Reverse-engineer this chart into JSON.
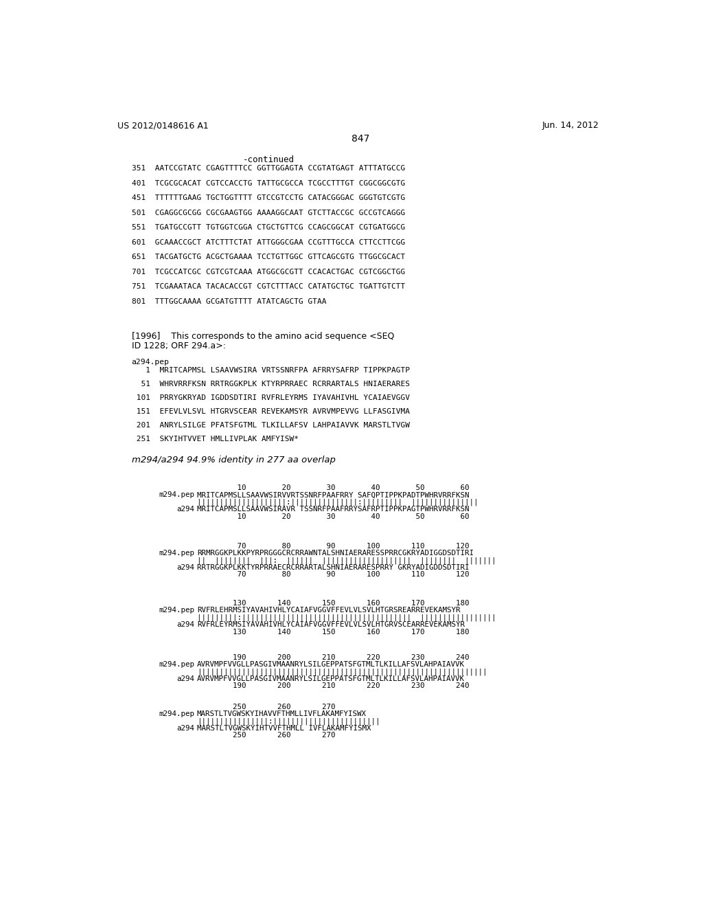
{
  "header_left": "US 2012/0148616 A1",
  "header_right": "Jun. 14, 2012",
  "page_number": "847",
  "background_color": "#ffffff",
  "text_color": "#000000",
  "continued_label": "-continued",
  "dna_sequences": [
    "351  AATCCGTATC CGAGTTTTCC GGTTGGAGTA CCGTATGAGT ATTTATGCCG",
    "401  TCGCGCACAT CGTCCACCTG TATTGCGCCA TCGCCTTTGT CGGCGGCGTG",
    "451  TTTTTTGAAG TGCTGGTTTT GTCCGTCCTG CATACGGGAC GGGTGTCGTG",
    "501  CGAGGCGCGG CGCGAAGTGG AAAAGGCAAT GTCTTACCGC GCCGTCAGGG",
    "551  TGATGCCGTT TGTGGTCGGA CTGCTGTTCG CCAGCGGCAT CGTGATGGCG",
    "601  GCAAACCGCT ATCTTTCTAT ATTGGGCGAA CCGTTTGCCA CTTCCTTCGG",
    "651  TACGATGCTG ACGCTGAAAA TCCTGTTGGC GTTCAGCGTG TTGGCGCACT",
    "701  TCGCCATCGC CGTCGTCAAA ATGGCGCGTT CCACACTGAC CGTCGGCTGG",
    "751  TCGAAATACA TACACACCGT CGTCTTTACC CATATGCTGC TGATTGTCTT",
    "801  TTTGGCAAAA GCGATGTTTT ATATCAGCTG GTAA"
  ],
  "para1996_line1": "[1996]    This corresponds to the amino acid sequence <SEQ",
  "para1996_line2": "ID 1228; ORF 294.a>:",
  "protein_label": "a294.pep",
  "protein_sequences": [
    "   1  MRITCAPMSL LSAAVWSIRA VRTSSNRFPA AFRRYSAFRP TIPPKPAGTP",
    "  51  WHRVRRFKSN RRTRGGKPLK KTYRPRRAEC RCRRARTALS HNIAERARES",
    " 101  PRRYGKRYAD IGDDSDTIRI RVFRLEYRMS IYAVAHIVHL YCAIAEVGGV",
    " 151  EFEVLVLSVL HTGRVSCEAR REVEKAMSYR AVRVMPEVVG LLFASGIVMA",
    " 201  ANRYLSILGE PFATSFGTML TLKILLAFSV LAHPAIAVVK MARSTLTVGW",
    " 251  SKYIHTVVET HMLLIVPLAK AMFYISW*"
  ],
  "identity_line": "m294/a294 94.9% identity in 277 aa overlap",
  "align_num_top_1": "         10        20        30        40        50        60",
  "align_seq1_1": "MRITCAPMSLLSAAVWSIRVVRTSSNRFPAAFRRY SAFQPTIPPKPADTPWHRVRRFKSN",
  "align_match_1": "||||||||||||||||||||:|||||||||||||||:|||||||||  |||||||||||||||",
  "align_seq2_1": "MRITCAPMSLLSAAVWSIRAVR TSSNRFPAAFRRYSAFRPTIPPKPAGTPWHRVRRFKSN",
  "align_num_bot_1": "         10        20        30        40        50        60",
  "align_num_top_2": "         70        80        90       100       110       120",
  "align_seq1_2": "RRMRGGKPLKKPYRPRGGGCRCRRAWNTALSHNIAERARESSPRRCGKRYADIGGDSDTIRI",
  "align_match_2": "||  ||||||||  |||:  ||||||  ||||||||||||||||||||  ||||||||  |||||||",
  "align_seq2_2": "RRTRGGKPLKKTYRPRRAECRCRRARTALSHNIAERARESPRRY GKRYADIGDDSDTIRI",
  "align_num_bot_2": "         70        80        90       100       110       120",
  "align_num_top_3": "        130       140       150       160       170       180",
  "align_seq1_3": "RVFRLEHRMSIYAVAHIVHLYCAIAFVGGVFFEVLVLSVLHTGRSREARREVEKAMSYR",
  "align_match_3": "|||||||||:||||||||||||||||||||||||||||||||||||||  |||||||||||||||||",
  "align_seq2_3": "RVFRLEYRMSIYAVAHIVHLYCAIAFVGGVFFEVLVLSVLHTGRVSCEARREVEKAMSYR",
  "align_num_bot_3": "        130       140       150       160       170       180",
  "align_num_top_4": "        190       200       210       220       230       240",
  "align_seq1_4": "AVRVMPFVVGLLPASGIVMAANRYLSILGEPPATSFGTMLTLKILLAFSVLAHPAIAVVK",
  "align_match_4": "|||||||||||||||||||||||||||||||||||||||||||||||||||||||||||||||||",
  "align_seq2_4": "AVRVMPFVVGLLPASGIVMAANRYLSILGEPPATSFGTMLTLKILLAFSVLAHPAIAVVK",
  "align_num_bot_4": "        190       200       210       220       230       240",
  "align_num_top_5": "        250       260       270",
  "align_seq1_5": "MARSTLTVGWSKYIHAVVFTHMLLIVFLAKAMFYISWX",
  "align_match_5": "||||||||||||||||:||||||||||||||||||||||||",
  "align_seq2_5": "MARSTLTVGWSKYIHTVVFTHMLL IVFLAKAMFYISMX",
  "align_num_bot_5": "        250       260       270"
}
